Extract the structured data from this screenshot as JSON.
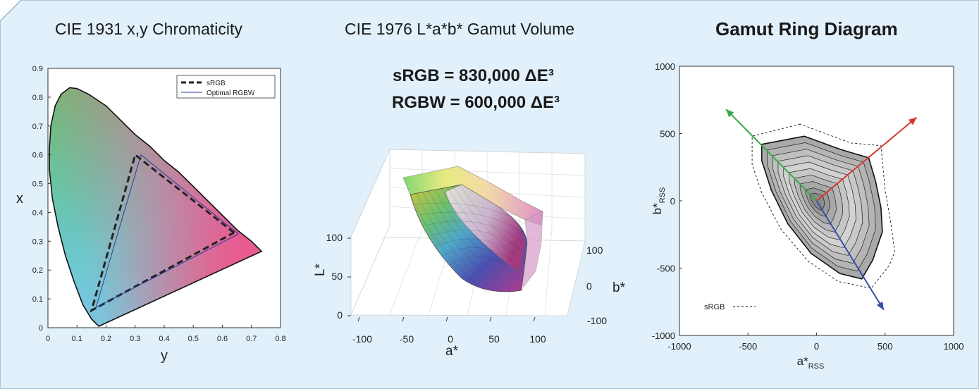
{
  "panel_titles": {
    "chromaticity": "CIE 1931 x,y Chromaticity",
    "gamut_volume": "CIE 1976 L*a*b* Gamut Volume",
    "gamut_ring": "Gamut Ring Diagram"
  },
  "volume_labels": {
    "srgb": "sRGB = 830,000 ΔE³",
    "rgbw": "RGBW = 600,000 ΔE³"
  },
  "colors": {
    "background": "#e1f0fa",
    "srgb_line": "#222222",
    "rgbw_line": "#2a3d9a",
    "arrow_red": "#d33a2c",
    "arrow_green": "#3aa84a",
    "arrow_blue": "#3a4fa8"
  },
  "chart_data": [
    {
      "type": "line",
      "name": "chromaticity",
      "xlabel": "y",
      "ylabel": "x",
      "xlim": [
        0,
        0.8
      ],
      "ylim": [
        0,
        0.9
      ],
      "xticks": [
        0,
        0.1,
        0.2,
        0.3,
        0.4,
        0.5,
        0.6,
        0.7,
        0.8
      ],
      "yticks": [
        0,
        0.1,
        0.2,
        0.3,
        0.4,
        0.5,
        0.6,
        0.7,
        0.8,
        0.9
      ],
      "legend_position": "top-right",
      "locus": [
        [
          0.175,
          0.005
        ],
        [
          0.15,
          0.03
        ],
        [
          0.12,
          0.08
        ],
        [
          0.09,
          0.16
        ],
        [
          0.06,
          0.25
        ],
        [
          0.035,
          0.35
        ],
        [
          0.015,
          0.45
        ],
        [
          0.005,
          0.55
        ],
        [
          0.005,
          0.62
        ],
        [
          0.01,
          0.7
        ],
        [
          0.025,
          0.77
        ],
        [
          0.045,
          0.81
        ],
        [
          0.075,
          0.833
        ],
        [
          0.1,
          0.83
        ],
        [
          0.14,
          0.81
        ],
        [
          0.2,
          0.77
        ],
        [
          0.25,
          0.72
        ],
        [
          0.3,
          0.67
        ],
        [
          0.35,
          0.63
        ],
        [
          0.4,
          0.58
        ],
        [
          0.45,
          0.54
        ],
        [
          0.5,
          0.49
        ],
        [
          0.55,
          0.44
        ],
        [
          0.6,
          0.39
        ],
        [
          0.65,
          0.34
        ],
        [
          0.7,
          0.3
        ],
        [
          0.735,
          0.265
        ]
      ],
      "purple_line": [
        [
          0.735,
          0.265
        ],
        [
          0.175,
          0.005
        ]
      ],
      "series": [
        {
          "name": "sRGB",
          "points": [
            [
              0.64,
              0.33
            ],
            [
              0.3,
              0.6
            ],
            [
              0.15,
              0.06
            ],
            [
              0.64,
              0.33
            ]
          ]
        },
        {
          "name": "Optimal RGBW",
          "points": [
            [
              0.655,
              0.325
            ],
            [
              0.32,
              0.6
            ],
            [
              0.165,
              0.07
            ],
            [
              0.655,
              0.325
            ]
          ]
        }
      ]
    },
    {
      "type": "surface",
      "name": "lab-volume",
      "xlabel": "a*",
      "ylabel": "b*",
      "zlabel": "L*",
      "xticks": [
        -100,
        -50,
        0,
        50,
        100
      ],
      "yticks": [
        -100,
        0,
        100
      ],
      "zticks": [
        0,
        50,
        100
      ],
      "grid": true
    },
    {
      "type": "line",
      "name": "gamut-ring",
      "xlabel": "a*",
      "xlabel_subscript": "RSS",
      "ylabel": "b*",
      "ylabel_subscript": "RSS",
      "xlim": [
        -1000,
        1000
      ],
      "ylim": [
        -1000,
        1000
      ],
      "xticks": [
        -1000,
        -500,
        0,
        500,
        1000
      ],
      "yticks": [
        -1000,
        -500,
        0,
        500,
        1000
      ],
      "legend_position": "bottom-left",
      "outer_ring": [
        [
          -90,
          480
        ],
        [
          -400,
          420
        ],
        [
          -400,
          300
        ],
        [
          -330,
          80
        ],
        [
          -210,
          -170
        ],
        [
          -40,
          -390
        ],
        [
          170,
          -540
        ],
        [
          330,
          -580
        ],
        [
          410,
          -440
        ],
        [
          480,
          -230
        ],
        [
          470,
          -50
        ],
        [
          430,
          150
        ],
        [
          380,
          320
        ],
        [
          180,
          380
        ]
      ],
      "ring_scales": [
        1.0,
        0.9,
        0.8,
        0.7,
        0.6,
        0.5,
        0.4,
        0.3,
        0.2,
        0.12
      ],
      "series": [
        {
          "name": "sRGB",
          "style": "dashed",
          "points": [
            [
              -120,
              570
            ],
            [
              -470,
              480
            ],
            [
              -470,
              270
            ],
            [
              -400,
              60
            ],
            [
              -260,
              -210
            ],
            [
              -60,
              -450
            ],
            [
              160,
              -600
            ],
            [
              400,
              -650
            ],
            [
              530,
              -480
            ],
            [
              570,
              -380
            ],
            [
              540,
              -150
            ],
            [
              500,
              80
            ],
            [
              470,
              410
            ],
            [
              250,
              430
            ]
          ]
        }
      ],
      "arrows": [
        {
          "color": "red",
          "from": [
            0,
            0
          ],
          "to": [
            730,
            620
          ]
        },
        {
          "color": "green",
          "from": [
            0,
            0
          ],
          "to": [
            -660,
            680
          ]
        },
        {
          "color": "blue",
          "from": [
            0,
            0
          ],
          "to": [
            490,
            -810
          ]
        }
      ]
    }
  ]
}
